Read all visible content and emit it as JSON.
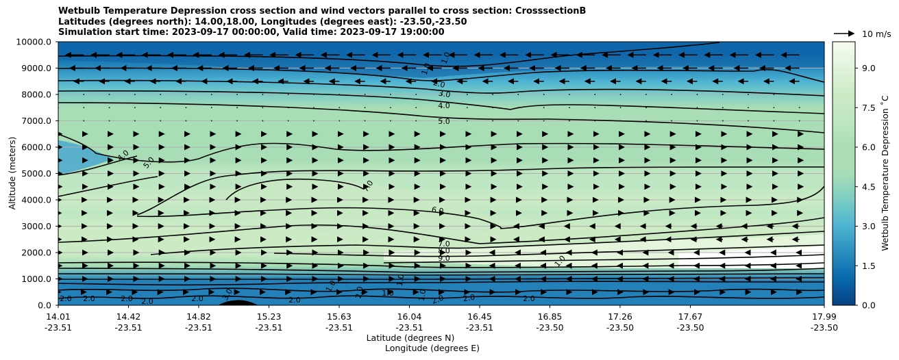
{
  "chart_data": {
    "type": "contour",
    "title_lines": [
      "Wetbulb Temperature Depression cross section and wind vectors parallel to cross section: CrosssectionB",
      "Latitudes (degrees north): 14.00,18.00, Longitudes (degrees east): -23.50,-23.50",
      "Simulation start time: 2023-09-17 00:00:00, Valid time: 2023-09-17 19:00:00"
    ],
    "ylabel": "Altitude (meters)",
    "xlabel_lat": "Latitude (degrees N)",
    "xlabel_lon": "Longitude (degrees E)",
    "ylim": [
      0,
      10000
    ],
    "y_ticks": [
      "0.0",
      "1000.0",
      "2000.0",
      "3000.0",
      "4000.0",
      "5000.0",
      "6000.0",
      "7000.0",
      "8000.0",
      "9000.0",
      "10000.0"
    ],
    "x_ticks": [
      {
        "lat": "14.01",
        "lon": "-23.51"
      },
      {
        "lat": "14.42",
        "lon": "-23.51"
      },
      {
        "lat": "14.82",
        "lon": "-23.51"
      },
      {
        "lat": "15.23",
        "lon": "-23.51"
      },
      {
        "lat": "15.63",
        "lon": "-23.51"
      },
      {
        "lat": "16.04",
        "lon": "-23.51"
      },
      {
        "lat": "16.45",
        "lon": "-23.51"
      },
      {
        "lat": "16.85",
        "lon": "-23.50"
      },
      {
        "lat": "17.26",
        "lon": "-23.50"
      },
      {
        "lat": "17.67",
        "lon": "-23.50"
      },
      {
        "lat": "17.99",
        "lon": "-23.50"
      }
    ],
    "colorbar": {
      "label": "Wetbulb Temperature Depression $^\\circ$C",
      "label_text": "Wetbulb Temperature Depression ˚C",
      "min": 0,
      "max": 10,
      "ticks": [
        "0.0",
        "1.5",
        "3.0",
        "4.5",
        "6.0",
        "7.5",
        "9.0"
      ],
      "colormap": "GnBu_r"
    },
    "wind_key": {
      "label": "10 m/s"
    },
    "contour_labels": [
      "1.0",
      "2.0",
      "3.0",
      "4.0",
      "5.0",
      "6.0",
      "7.0",
      "8.0",
      "9.0"
    ],
    "profile": {
      "altitudes": [
        0,
        500,
        1000,
        1500,
        2000,
        2500,
        3000,
        3500,
        4000,
        4500,
        5000,
        5500,
        6000,
        6500,
        7000,
        7500,
        8000,
        8500,
        9000,
        9500,
        10000
      ],
      "depression": [
        1.5,
        1.2,
        2.0,
        5.0,
        7.5,
        7.8,
        7.2,
        7.0,
        7.2,
        6.8,
        6.3,
        6.0,
        5.5,
        5.0,
        4.8,
        4.2,
        3.2,
        2.4,
        1.6,
        1.0,
        0.8
      ]
    },
    "wind": {
      "upper_level_altitudes": [
        8500,
        9000,
        9500
      ],
      "upper_direction": "toward south (leftward)",
      "mid_level_direction": "toward north (rightward)"
    }
  }
}
